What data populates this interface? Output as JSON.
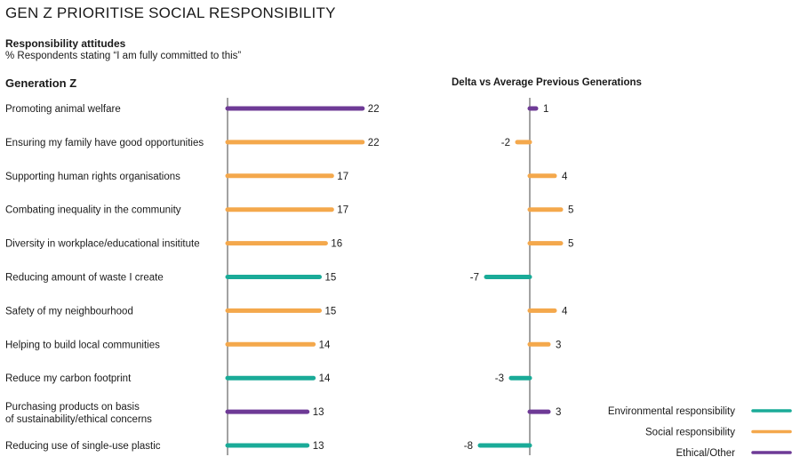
{
  "page": {
    "title": "GEN Z PRIORITISE SOCIAL RESPONSIBILITY",
    "subtitle": "Responsibility attitudes",
    "note": "% Respondents stating “I am fully committed to this”",
    "left_heading": "Generation Z",
    "right_heading": "Delta vs Average Previous Generations"
  },
  "colors": {
    "environmental": "#1aab98",
    "social": "#f4a84c",
    "ethical": "#6e3a96",
    "axis": "#444444"
  },
  "chart_data": [
    {
      "type": "bar",
      "orientation": "horizontal",
      "title": "Generation Z",
      "categories": [
        "Promoting animal welfare",
        "Ensuring my family have good opportunities",
        "Supporting human rights organisations",
        "Combating inequality in the community",
        "Diversity in workplace/educational insititute",
        "Reducing amount of waste I create",
        "Safety of my neighbourhood",
        "Helping to build local communities",
        "Reduce my carbon footprint",
        "Purchasing products on basis of sustainability/ethical concerns",
        "Reducing use of single-use plastic"
      ],
      "category_lines": [
        [
          "Promoting animal welfare"
        ],
        [
          "Ensuring my family have good opportunities"
        ],
        [
          "Supporting human rights organisations"
        ],
        [
          "Combating inequality in the community"
        ],
        [
          "Diversity in workplace/educational insititute"
        ],
        [
          "Reducing amount of waste I create"
        ],
        [
          "Safety of my neighbourhood"
        ],
        [
          "Helping to build local communities"
        ],
        [
          "Reduce my carbon footprint"
        ],
        [
          "Purchasing products on basis",
          "of sustainability/ethical concerns"
        ],
        [
          "Reducing use of single-use plastic"
        ]
      ],
      "values": [
        22,
        22,
        17,
        17,
        16,
        15,
        15,
        14,
        14,
        13,
        13
      ],
      "groups": [
        "ethical",
        "social",
        "social",
        "social",
        "social",
        "environmental",
        "social",
        "social",
        "environmental",
        "ethical",
        "environmental"
      ]
    },
    {
      "type": "bar",
      "orientation": "horizontal",
      "title": "Delta vs Average Previous Generations",
      "values": [
        1,
        -2,
        4,
        5,
        5,
        -7,
        4,
        3,
        -3,
        3,
        -8
      ],
      "groups": [
        "ethical",
        "social",
        "social",
        "social",
        "social",
        "environmental",
        "social",
        "social",
        "environmental",
        "ethical",
        "environmental"
      ]
    }
  ],
  "legend": [
    {
      "label": "Environmental responsibility",
      "group": "environmental"
    },
    {
      "label": "Social responsibility",
      "group": "social"
    },
    {
      "label": "Ethical/Other",
      "group": "ethical"
    }
  ]
}
